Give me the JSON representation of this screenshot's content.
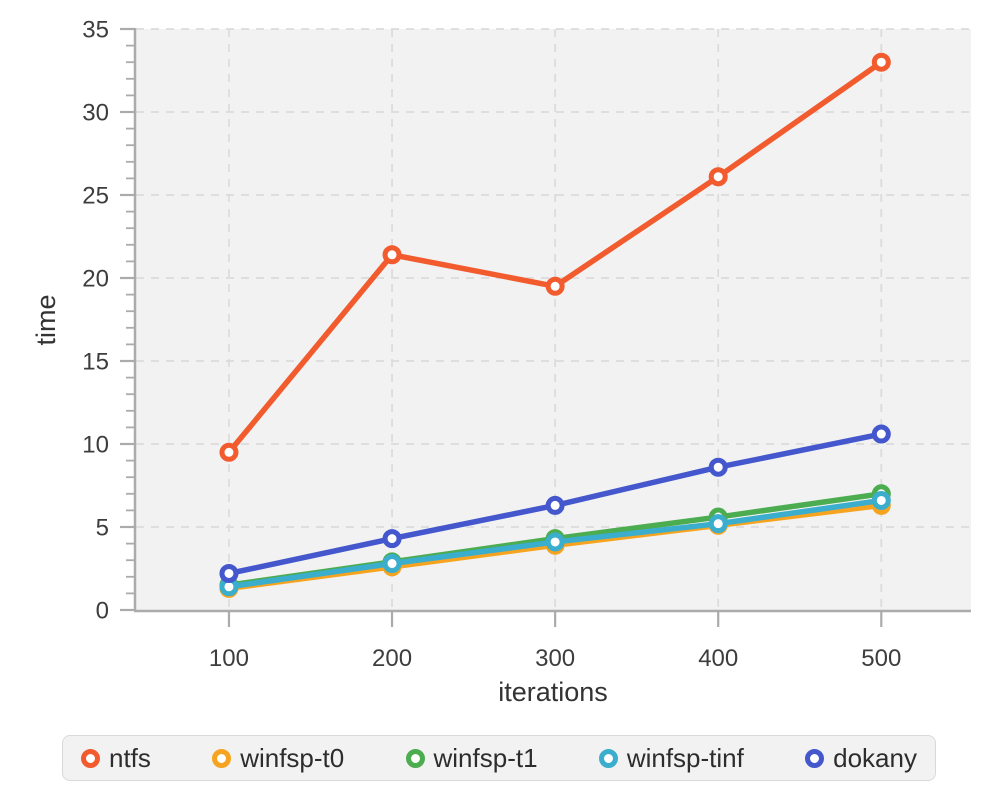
{
  "chart_data": {
    "type": "line",
    "title": "",
    "xlabel": "iterations",
    "ylabel": "time",
    "x": [
      100,
      200,
      300,
      400,
      500
    ],
    "x_tick_labels": [
      "100",
      "200",
      "300",
      "400",
      "500"
    ],
    "y_tick_values": [
      0,
      5,
      10,
      15,
      20,
      25,
      30,
      35
    ],
    "y_tick_labels": [
      "0",
      "5",
      "10",
      "15",
      "20",
      "25",
      "30",
      "35"
    ],
    "y_minor_tick_step": 1,
    "ylim": [
      0,
      35
    ],
    "xlim": [
      43,
      555
    ],
    "grid": true,
    "grid_style": "dashed",
    "legend_position": "bottom",
    "marker": {
      "shape": "circle-open",
      "fill": "#ffffff"
    },
    "series": [
      {
        "name": "ntfs",
        "color": "#f25b2e",
        "values": [
          9.5,
          21.4,
          19.5,
          26.1,
          33.0
        ]
      },
      {
        "name": "winfsp-t0",
        "color": "#f6a41f",
        "values": [
          1.3,
          2.6,
          3.9,
          5.1,
          6.3
        ]
      },
      {
        "name": "winfsp-t1",
        "color": "#4cac50",
        "values": [
          1.5,
          2.9,
          4.3,
          5.6,
          7.0
        ]
      },
      {
        "name": "winfsp-tinf",
        "color": "#3badcd",
        "values": [
          1.4,
          2.8,
          4.1,
          5.2,
          6.6
        ]
      },
      {
        "name": "dokany",
        "color": "#4457cd",
        "values": [
          2.2,
          4.3,
          6.3,
          8.6,
          10.6
        ]
      }
    ]
  },
  "colors": {
    "plot_background": "#f2f2f2",
    "gridline": "#dcdcdc",
    "spine": "#ababab",
    "tick": "#ababab",
    "tick_text": "#3d3d3d",
    "legend_background": "#f2f2f3",
    "legend_border": "#d9d9d9"
  }
}
